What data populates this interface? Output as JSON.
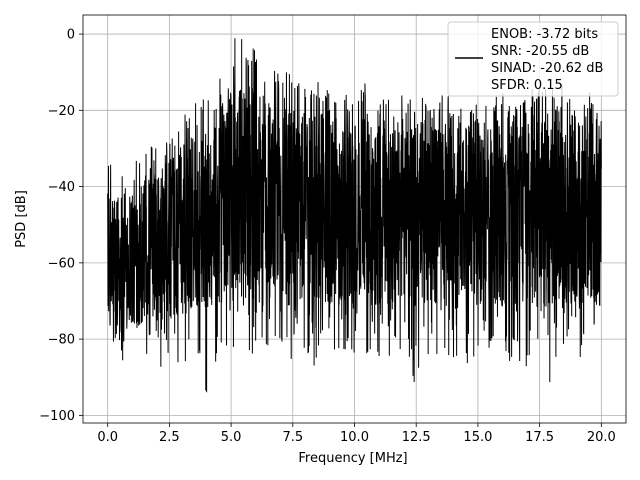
{
  "chart_data": {
    "type": "line",
    "title": "",
    "xlabel": "Frequency [MHz]",
    "ylabel": "PSD [dB]",
    "xlim": [
      -1.0,
      21.0
    ],
    "ylim": [
      -102.0,
      5.0
    ],
    "x_ticks": [
      0.0,
      2.5,
      5.0,
      7.5,
      10.0,
      12.5,
      15.0,
      17.5,
      20.0
    ],
    "x_tick_labels": [
      "0.0",
      "2.5",
      "5.0",
      "7.5",
      "10.0",
      "12.5",
      "15.0",
      "17.5",
      "20.0"
    ],
    "y_ticks": [
      0,
      -20,
      -40,
      -60,
      -80,
      -100
    ],
    "y_tick_labels": [
      "0",
      "−20",
      "−40",
      "−60",
      "−80",
      "−100"
    ],
    "grid": true,
    "legend_position": "top-right",
    "legend_entries": [
      "ENOB: -3.72 bits",
      "SNR: -20.55 dB",
      "SINAD: -20.62 dB",
      "SFDR: 0.15"
    ],
    "series_color": "#000000",
    "series": [
      {
        "name": "ENOB: -3.72 bits SNR: -20.55 dB SINAD: -20.62 dB SFDR: 0.15",
        "x_range": [
          0.0,
          20.0
        ],
        "description_note": "dense noise-like PSD; envelope values below",
        "envelope": {
          "x": [
            0.0,
            0.5,
            1.0,
            1.5,
            2.0,
            2.5,
            3.0,
            3.5,
            4.0,
            4.5,
            5.0,
            5.5,
            6.0,
            6.5,
            7.0,
            7.5,
            8.0,
            8.5,
            9.0,
            9.5,
            10.0,
            10.5,
            11.0,
            11.5,
            12.0,
            12.5,
            13.0,
            13.5,
            14.0,
            14.5,
            15.0,
            15.5,
            16.0,
            16.5,
            17.0,
            17.5,
            18.0,
            18.5,
            19.0,
            19.5,
            20.0
          ],
          "upper": [
            -32,
            -33,
            -30,
            -28,
            -25,
            -26,
            -20,
            -15,
            -12,
            -8,
            -1,
            -1,
            -3,
            -5,
            -9,
            -10,
            -14,
            -12,
            -15,
            -15,
            -16,
            -12,
            -16,
            -15,
            -16,
            -15,
            -18,
            -15,
            -15,
            -18,
            -18,
            -18,
            -14,
            -14,
            -15,
            -13,
            -14,
            -12,
            -13,
            -12,
            -20
          ],
          "lower": [
            -82,
            -86,
            -88,
            -85,
            -90,
            -87,
            -92,
            -89,
            -95,
            -88,
            -85,
            -83,
            -85,
            -82,
            -86,
            -86,
            -88,
            -87,
            -85,
            -84,
            -86,
            -84,
            -86,
            -87,
            -88,
            -96,
            -88,
            -86,
            -87,
            -90,
            -86,
            -88,
            -87,
            -86,
            -90,
            -88,
            -92,
            -88,
            -89,
            -87,
            -84
          ],
          "band_top": [
            -42,
            -40,
            -38,
            -38,
            -36,
            -33,
            -30,
            -28,
            -26,
            -22,
            -15,
            -12,
            -14,
            -16,
            -18,
            -20,
            -20,
            -20,
            -21,
            -22,
            -22,
            -21,
            -22,
            -22,
            -23,
            -22,
            -23,
            -22,
            -23,
            -23,
            -22,
            -22,
            -22,
            -21,
            -21,
            -21,
            -21,
            -21,
            -21,
            -21,
            -25
          ],
          "band_bottom": [
            -75,
            -77,
            -78,
            -76,
            -76,
            -75,
            -74,
            -72,
            -72,
            -71,
            -70,
            -70,
            -70,
            -70,
            -70,
            -70,
            -71,
            -71,
            -71,
            -71,
            -71,
            -71,
            -71,
            -71,
            -71,
            -72,
            -72,
            -72,
            -72,
            -72,
            -72,
            -72,
            -72,
            -72,
            -72,
            -72,
            -72,
            -72,
            -72,
            -72,
            -72
          ]
        }
      }
    ]
  }
}
